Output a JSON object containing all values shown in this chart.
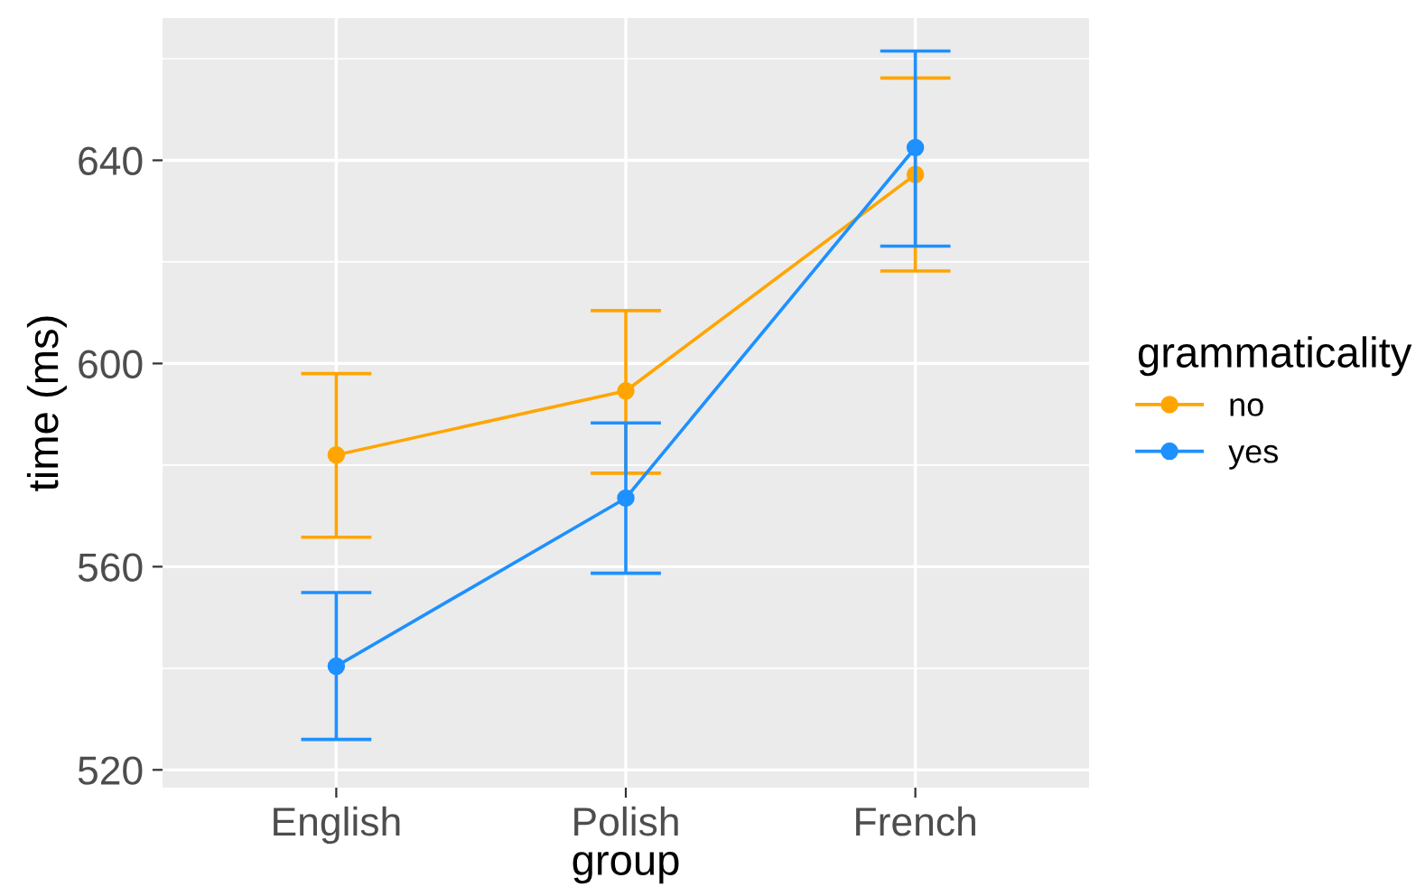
{
  "chart_data": {
    "type": "line",
    "xlabel": "group",
    "ylabel": "time (ms)",
    "legend_title": "grammaticality",
    "categories": [
      "English",
      "Polish",
      "French"
    ],
    "series": [
      {
        "name": "no",
        "color": "#ffa500",
        "values": [
          582,
          594.6,
          637.2
        ],
        "errors": [
          [
            565.8,
            598
          ],
          [
            578.4,
            610.4
          ],
          [
            618.2,
            656.2
          ]
        ]
      },
      {
        "name": "yes",
        "color": "#1e90ff",
        "values": [
          540.4,
          573.5,
          642.5
        ],
        "errors": [
          [
            526,
            554.9
          ],
          [
            558.7,
            588.3
          ],
          [
            623.1,
            661.5
          ]
        ]
      }
    ],
    "ylim": [
      516.5,
      668
    ],
    "yticks": [
      520,
      560,
      600,
      640
    ],
    "grid": true,
    "legend": "right",
    "marker": "circle",
    "line_style": "solid"
  }
}
